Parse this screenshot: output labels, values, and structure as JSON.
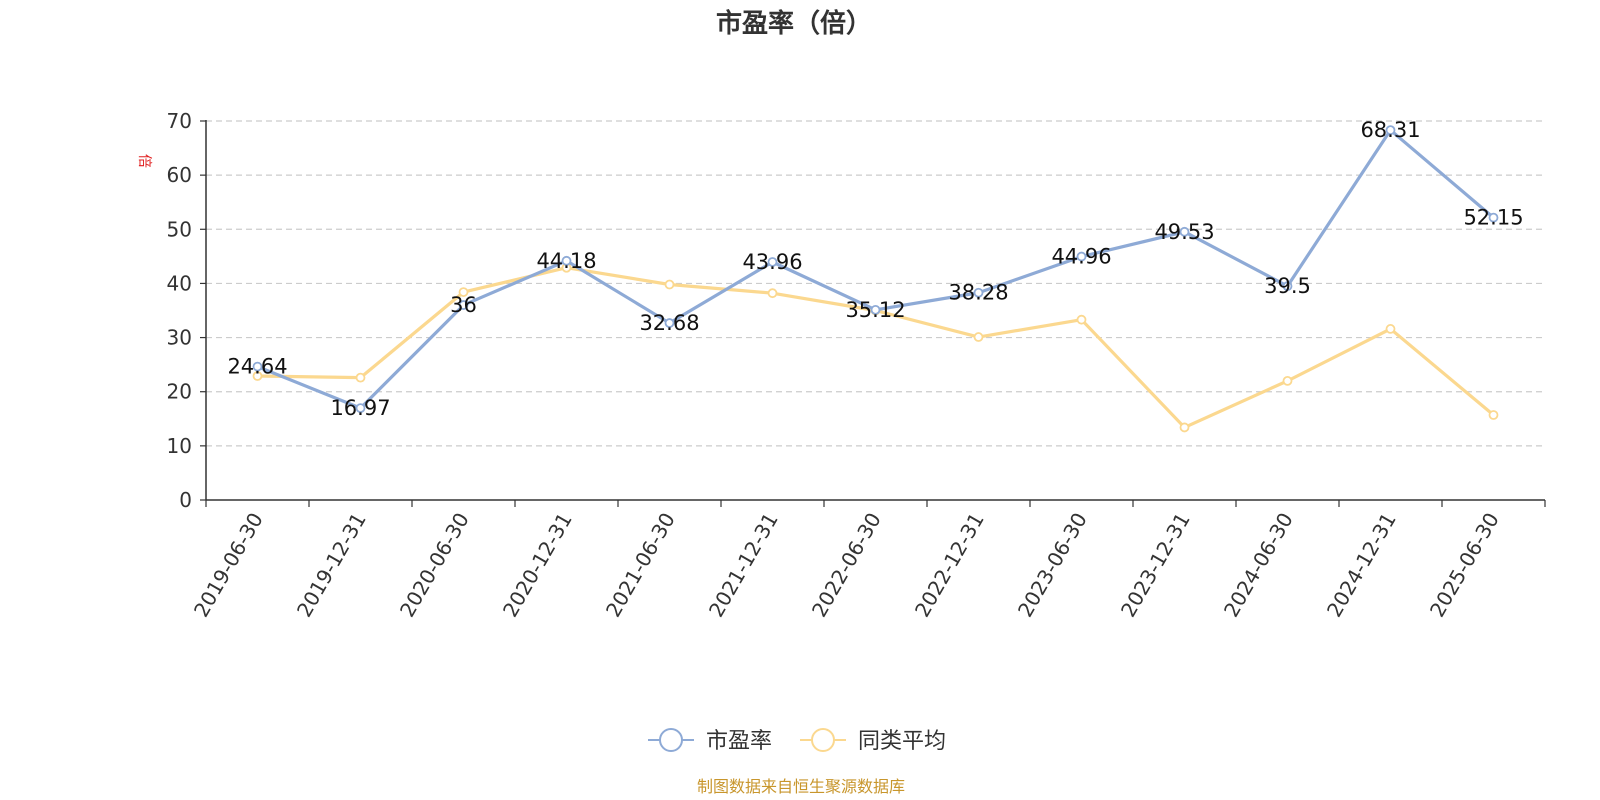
{
  "chart_data": {
    "type": "line",
    "title": "市盈率（倍）",
    "ylabel": "倍",
    "ylim": [
      0,
      70
    ],
    "yticks": [
      0,
      10,
      20,
      30,
      40,
      50,
      60,
      70
    ],
    "grid": true,
    "legend_placement": "bottom-center",
    "categories": [
      "2019-06-30",
      "2019-12-31",
      "2020-06-30",
      "2020-12-31",
      "2021-06-30",
      "2021-12-31",
      "2022-06-30",
      "2022-12-31",
      "2023-06-30",
      "2023-12-31",
      "2024-06-30",
      "2024-12-31",
      "2025-06-30"
    ],
    "series": [
      {
        "name": "市盈率",
        "color": "#8eaad6",
        "values": [
          24.64,
          16.97,
          36,
          44.18,
          32.68,
          43.96,
          35.12,
          38.28,
          44.96,
          49.53,
          39.5,
          68.31,
          52.15
        ],
        "labels": [
          "24.64",
          "16.97",
          "36",
          "44.18",
          "32.68",
          "43.96",
          "35.12",
          "38.28",
          "44.96",
          "49.53",
          "39.5",
          "68.31",
          "52.15"
        ]
      },
      {
        "name": "同类平均",
        "color": "#fbd88f",
        "values": [
          22.9,
          22.6,
          38.4,
          42.9,
          39.8,
          38.2,
          35.0,
          30.1,
          33.3,
          13.4,
          22.0,
          31.6,
          15.7
        ]
      }
    ]
  },
  "footer": {
    "source": "制图数据来自恒生聚源数据库"
  }
}
